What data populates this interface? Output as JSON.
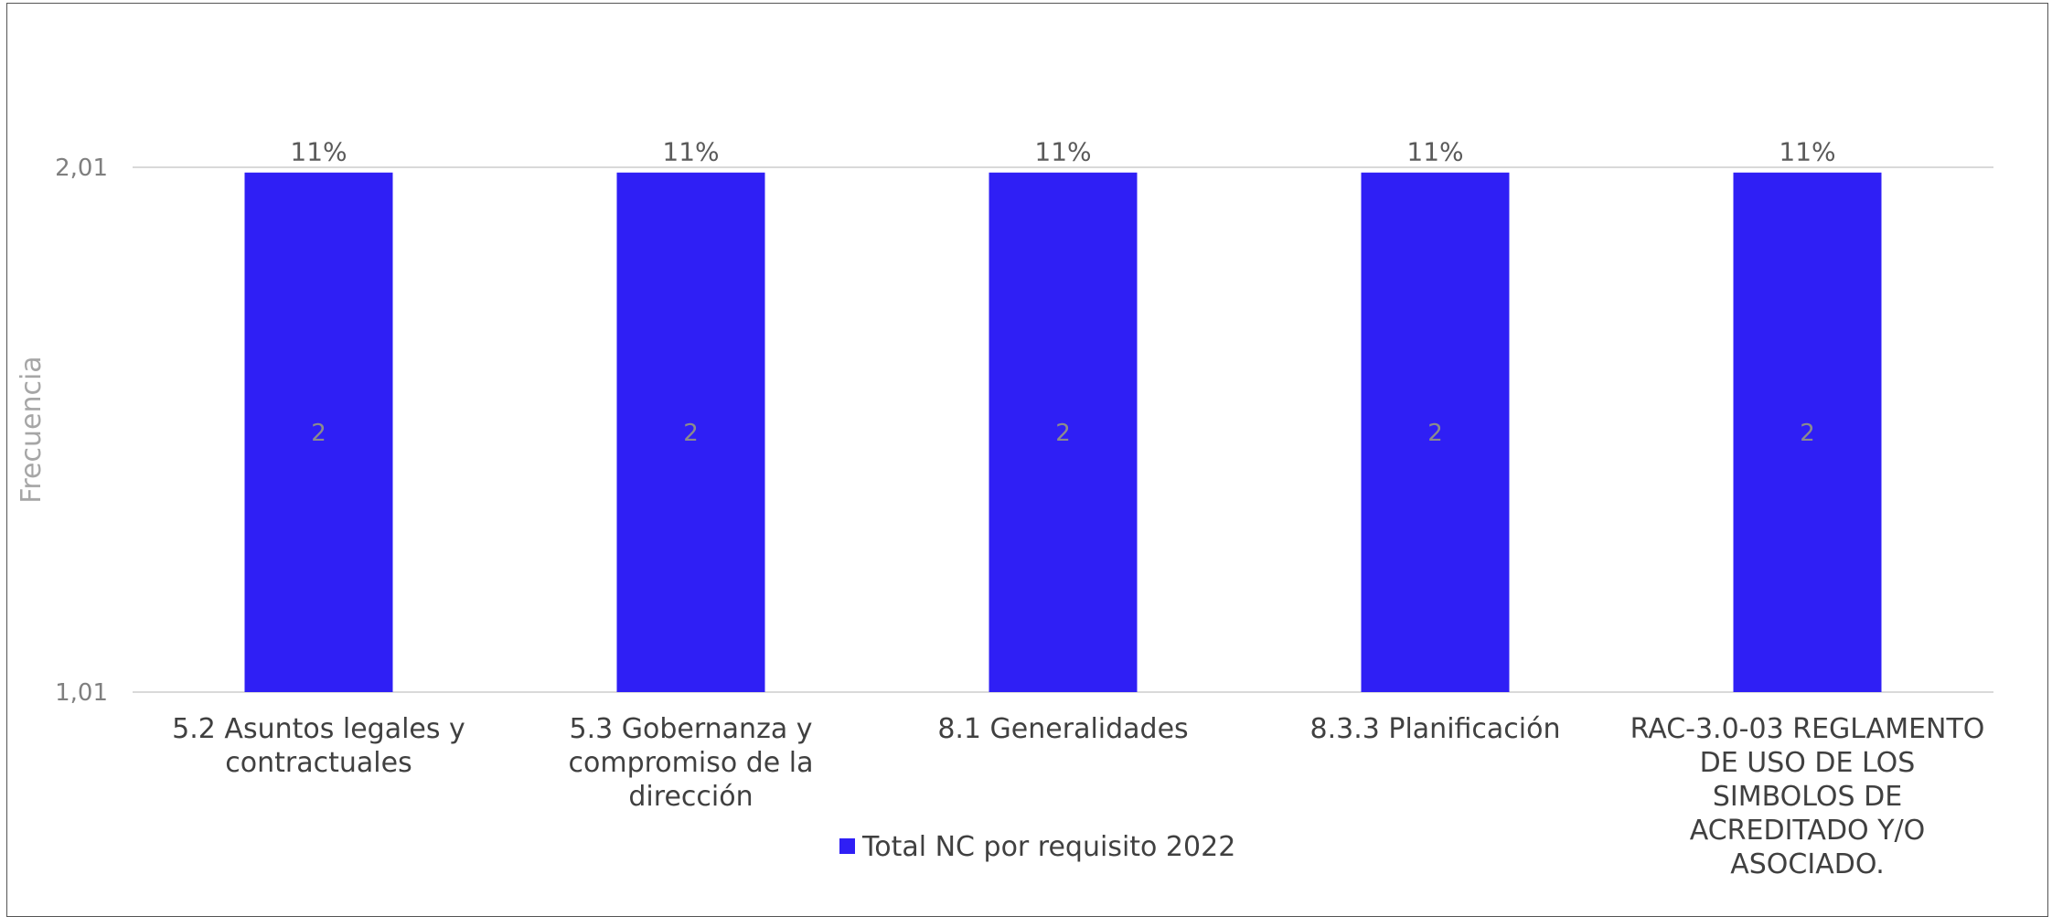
{
  "chart_data": {
    "type": "bar",
    "title": "",
    "xlabel": "",
    "ylabel": "Frecuencia",
    "categories": [
      "5.2 Asuntos legales y contractuales",
      "5.3 Gobernanza y compromiso de la dirección",
      "8.1 Generalidades",
      "8.3.3 Planificación",
      "RAC-3.0-03 REGLAMENTO DE USO DE LOS SIMBOLOS DE ACREDITADO Y/O ASOCIADO."
    ],
    "category_lines": [
      [
        "5.2 Asuntos legales y",
        "contractuales"
      ],
      [
        "5.3 Gobernanza y",
        "compromiso de la",
        "dirección"
      ],
      [
        "8.1 Generalidades"
      ],
      [
        "8.3.3 Planificación"
      ],
      [
        "RAC-3.0-03 REGLAMENTO",
        "DE USO DE LOS",
        "SIMBOLOS DE",
        "ACREDITADO Y/O",
        "ASOCIADO."
      ]
    ],
    "series": [
      {
        "name": "Total NC por requisito 2022",
        "values": [
          2,
          2,
          2,
          2,
          2
        ],
        "percent_labels": [
          "11%",
          "11%",
          "11%",
          "11%",
          "11%"
        ],
        "color": "#2f1ff5"
      }
    ],
    "y_ticks": [
      {
        "value": 1.01,
        "label": "1,01"
      },
      {
        "value": 2.01,
        "label": "2,01"
      }
    ],
    "ylim": [
      1.01,
      2.01
    ],
    "grid": true,
    "legend_position": "bottom"
  }
}
